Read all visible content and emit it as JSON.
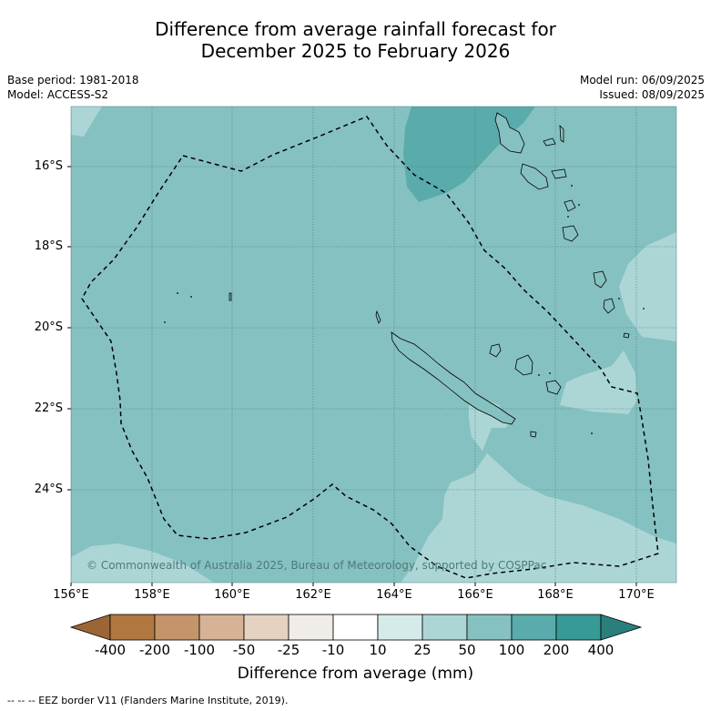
{
  "title_line1": "Difference from average rainfall forecast for",
  "title_line2": "December 2025 to February 2026",
  "base_period": "Base period: 1981-2018",
  "model": "Model: ACCESS-S2",
  "model_run": "Model run: 06/09/2025",
  "issued": "Issued: 08/09/2025",
  "copyright": "© Commonwealth of Australia 2025, Bureau of Meteorology, supported by COSPPac",
  "lat_labels": [
    "16°S",
    "18°S",
    "20°S",
    "22°S",
    "24°S"
  ],
  "lon_labels": [
    "156°E",
    "158°E",
    "160°E",
    "162°E",
    "164°E",
    "166°E",
    "168°E",
    "170°E"
  ],
  "colorbar": {
    "title": "Difference from average (mm)",
    "labels": [
      "-400",
      "-200",
      "-100",
      "-50",
      "-25",
      "-10",
      "10",
      "25",
      "50",
      "100",
      "200",
      "400"
    ],
    "colors": [
      "#9c6535",
      "#b07840",
      "#c4956a",
      "#d6b396",
      "#e6d2c0",
      "#f0ece8",
      "#ffffff",
      "#d5ebea",
      "#acd6d6",
      "#86c1c1",
      "#5aabab",
      "#379a97",
      "#2a7f7c"
    ]
  },
  "footnote": "--  --  -- EEZ border V11 (Flanders Marine Institute, 2019).",
  "map_colors": {
    "category_50_100": "#86c1c1",
    "category_25_50": "#acd6d6",
    "category_100_200": "#5aabab"
  }
}
